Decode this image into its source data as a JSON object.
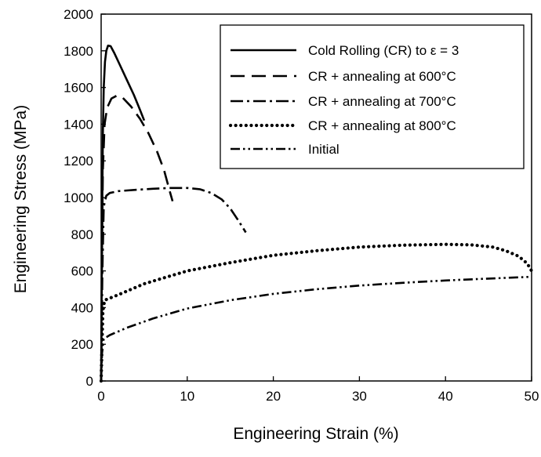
{
  "chart_data": {
    "type": "line",
    "title": "",
    "xlabel": "Engineering Strain (%)",
    "ylabel": "Engineering Stress (MPa)",
    "xlim": [
      0,
      50
    ],
    "ylim": [
      0,
      2000
    ],
    "x_ticks": [
      "0",
      "10",
      "20",
      "30",
      "40",
      "50"
    ],
    "y_ticks": [
      "0",
      "200",
      "400",
      "600",
      "800",
      "1000",
      "1200",
      "1400",
      "1600",
      "1800",
      "2000"
    ],
    "grid": false,
    "legend_position": "top-right",
    "series": [
      {
        "name": "Cold Rolling (CR) to ε = 3",
        "line_style": "solid",
        "points": [
          [
            0,
            0
          ],
          [
            0.1,
            800
          ],
          [
            0.2,
            1350
          ],
          [
            0.3,
            1600
          ],
          [
            0.45,
            1740
          ],
          [
            0.6,
            1800
          ],
          [
            0.8,
            1828
          ],
          [
            1.1,
            1825
          ],
          [
            1.5,
            1790
          ],
          [
            2.2,
            1720
          ],
          [
            3,
            1640
          ],
          [
            3.8,
            1560
          ],
          [
            4.5,
            1480
          ],
          [
            5,
            1420
          ]
        ]
      },
      {
        "name": "CR + annealing at 600°C",
        "line_style": "dashed",
        "points": [
          [
            0,
            0
          ],
          [
            0.1,
            700
          ],
          [
            0.2,
            1150
          ],
          [
            0.4,
            1400
          ],
          [
            0.7,
            1490
          ],
          [
            1.2,
            1540
          ],
          [
            1.8,
            1555
          ],
          [
            2.5,
            1545
          ],
          [
            3.5,
            1495
          ],
          [
            4.5,
            1430
          ],
          [
            5.5,
            1350
          ],
          [
            6.5,
            1250
          ],
          [
            7.3,
            1150
          ],
          [
            8,
            1030
          ],
          [
            8.3,
            980
          ]
        ]
      },
      {
        "name": "CR + annealing at 700°C",
        "line_style": "dash-dot",
        "points": [
          [
            0,
            0
          ],
          [
            0.15,
            600
          ],
          [
            0.3,
            950
          ],
          [
            0.6,
            1010
          ],
          [
            1,
            1025
          ],
          [
            2,
            1035
          ],
          [
            4,
            1042
          ],
          [
            6,
            1048
          ],
          [
            8,
            1052
          ],
          [
            10,
            1052
          ],
          [
            11.5,
            1045
          ],
          [
            12.8,
            1025
          ],
          [
            14,
            990
          ],
          [
            15,
            940
          ],
          [
            16,
            870
          ],
          [
            16.8,
            810
          ]
        ]
      },
      {
        "name": "CR + annealing at 800°C",
        "line_style": "dotted",
        "points": [
          [
            0,
            0
          ],
          [
            0.1,
            200
          ],
          [
            0.2,
            380
          ],
          [
            0.4,
            440
          ],
          [
            2,
            470
          ],
          [
            5,
            530
          ],
          [
            10,
            600
          ],
          [
            15,
            645
          ],
          [
            20,
            685
          ],
          [
            25,
            710
          ],
          [
            30,
            730
          ],
          [
            35,
            740
          ],
          [
            40,
            745
          ],
          [
            43,
            742
          ],
          [
            45.5,
            730
          ],
          [
            47,
            710
          ],
          [
            48.5,
            680
          ],
          [
            49.5,
            640
          ],
          [
            50,
            600
          ]
        ]
      },
      {
        "name": "Initial",
        "line_style": "dash-dot-dot",
        "points": [
          [
            0,
            0
          ],
          [
            0.1,
            150
          ],
          [
            0.3,
            230
          ],
          [
            1,
            250
          ],
          [
            3,
            290
          ],
          [
            6,
            340
          ],
          [
            10,
            395
          ],
          [
            15,
            440
          ],
          [
            20,
            475
          ],
          [
            25,
            500
          ],
          [
            30,
            520
          ],
          [
            35,
            535
          ],
          [
            40,
            548
          ],
          [
            45,
            558
          ],
          [
            50,
            568
          ]
        ]
      }
    ]
  }
}
